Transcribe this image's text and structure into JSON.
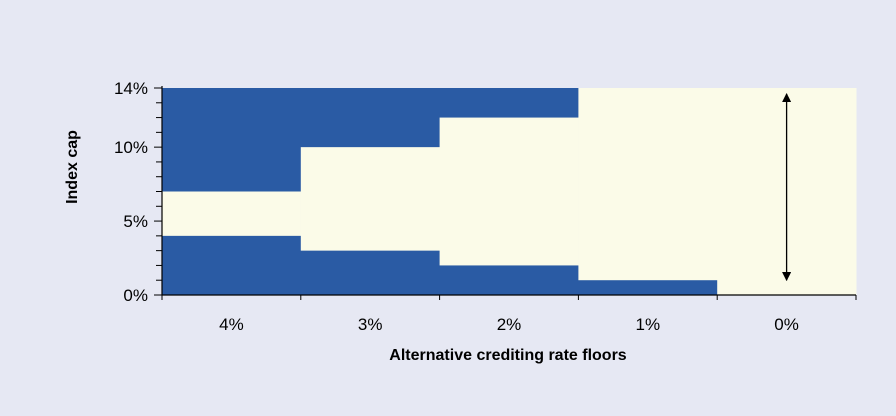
{
  "chart_data": {
    "type": "bar",
    "categories": [
      "4%",
      "3%",
      "2%",
      "1%",
      "0%"
    ],
    "xlabel": "Alternative crediting rate floors",
    "ylabel": "Index cap",
    "ylim": [
      0,
      14
    ],
    "y_ticks": [
      "0%",
      "5%",
      "10%",
      "14%"
    ],
    "y_tick_values": [
      0,
      5,
      10,
      14
    ],
    "series": [
      {
        "values": [
          4,
          3,
          2,
          1,
          0
        ]
      },
      {
        "values": [
          7,
          10,
          12,
          14,
          14
        ]
      }
    ],
    "colors": {
      "blue_region": "#2a5ba4",
      "light_region": "#fbfbe8",
      "axis": "#000000"
    },
    "annotation": {
      "type": "double-headed-arrow",
      "category": "0%",
      "from": 1,
      "to": 13.6
    },
    "grid": false
  }
}
